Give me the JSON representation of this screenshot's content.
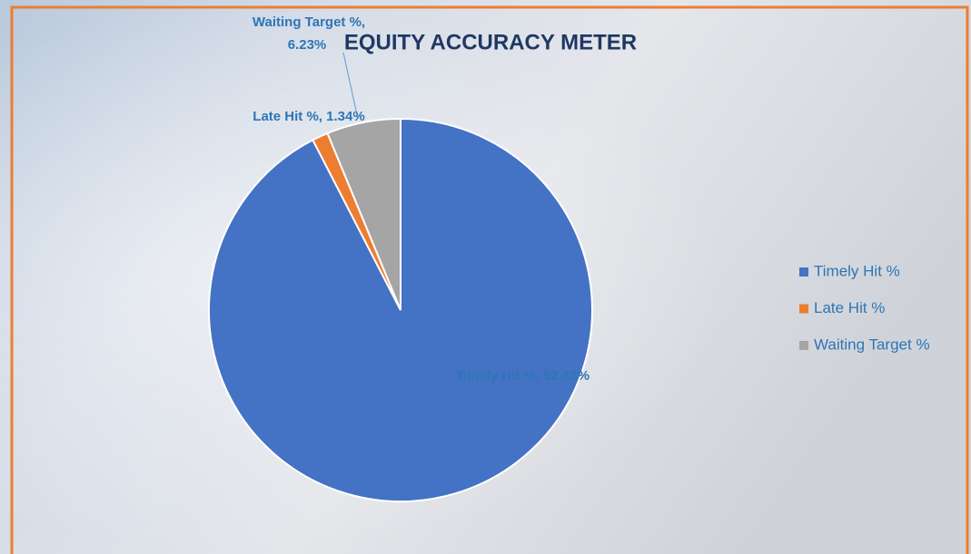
{
  "chart_data": {
    "type": "pie",
    "title": "EQUITY ACCURACY METER",
    "categories": [
      "Timely Hit %",
      "Late Hit %",
      "Waiting Target %"
    ],
    "values": [
      92.43,
      1.34,
      6.23
    ],
    "value_labels": [
      "Timely Hit %, 92.43%",
      "Late Hit %, 1.34%",
      "Waiting Target %, 6.23%"
    ],
    "colors": [
      "#4472c4",
      "#ed7d31",
      "#a5a5a5"
    ],
    "legend": "right"
  }
}
